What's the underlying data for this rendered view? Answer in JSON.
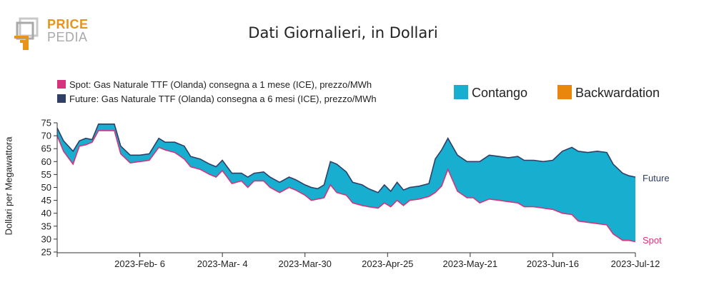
{
  "logo": {
    "word1": "PRICE",
    "word2": "PEDIA"
  },
  "chart_data": {
    "type": "area",
    "title": "Dati Giornalieri, in Dollari",
    "xlabel": "",
    "ylabel": "Dollari per Megawattora",
    "ylim": [
      25,
      75
    ],
    "yticks": [
      25,
      30,
      35,
      40,
      45,
      50,
      55,
      60,
      65,
      70,
      75
    ],
    "xticks": [
      "2023-Feb- 6",
      "2023-Mar- 4",
      "2023-Mar-30",
      "2023-Apr-25",
      "2023-May-21",
      "2023-Jun-16",
      "2023-Jul-12"
    ],
    "x_start": "2023-01-11",
    "x_end": "2023-07-12",
    "legend": [
      {
        "name": "Spot: Gas Naturale TTF (Olanda) consegna a 1 mese (ICE), prezzo/MWh",
        "color": "#d6337c"
      },
      {
        "name": "Future: Gas Naturale TTF (Olanda) consegna a 6 mesi (ICE), prezzo/MWh",
        "color": "#2f3f66"
      }
    ],
    "areas": [
      {
        "name": "Contango",
        "color": "#17aed0"
      },
      {
        "name": "Backwardation",
        "color": "#e8870c"
      }
    ],
    "end_labels": {
      "future": "Future",
      "spot": "Spot"
    },
    "series": [
      {
        "name": "Future",
        "color": "#2f3f66",
        "points": [
          [
            "2023-01-11",
            73
          ],
          [
            "2023-01-13",
            68
          ],
          [
            "2023-01-16",
            64
          ],
          [
            "2023-01-18",
            68
          ],
          [
            "2023-01-20",
            69
          ],
          [
            "2023-01-22",
            68.5
          ],
          [
            "2023-01-24",
            74.5
          ],
          [
            "2023-01-26",
            74.5
          ],
          [
            "2023-01-29",
            74.5
          ],
          [
            "2023-01-31",
            66
          ],
          [
            "2023-02-03",
            62.5
          ],
          [
            "2023-02-06",
            62.5
          ],
          [
            "2023-02-09",
            63
          ],
          [
            "2023-02-12",
            69
          ],
          [
            "2023-02-14",
            67.5
          ],
          [
            "2023-02-17",
            67.5
          ],
          [
            "2023-02-20",
            66
          ],
          [
            "2023-02-22",
            62
          ],
          [
            "2023-02-25",
            61
          ],
          [
            "2023-02-28",
            59
          ],
          [
            "2023-03-02",
            58
          ],
          [
            "2023-03-04",
            60.5
          ],
          [
            "2023-03-07",
            55.5
          ],
          [
            "2023-03-10",
            55.5
          ],
          [
            "2023-03-12",
            54
          ],
          [
            "2023-03-14",
            55.5
          ],
          [
            "2023-03-17",
            56
          ],
          [
            "2023-03-19",
            54
          ],
          [
            "2023-03-22",
            52
          ],
          [
            "2023-03-25",
            54
          ],
          [
            "2023-03-27",
            53
          ],
          [
            "2023-03-30",
            51
          ],
          [
            "2023-04-01",
            50
          ],
          [
            "2023-04-03",
            49.5
          ],
          [
            "2023-04-05",
            51
          ],
          [
            "2023-04-07",
            60
          ],
          [
            "2023-04-09",
            59
          ],
          [
            "2023-04-12",
            56
          ],
          [
            "2023-04-14",
            52
          ],
          [
            "2023-04-17",
            51
          ],
          [
            "2023-04-19",
            49.5
          ],
          [
            "2023-04-22",
            48
          ],
          [
            "2023-04-24",
            51
          ],
          [
            "2023-04-26",
            48.5
          ],
          [
            "2023-04-28",
            52
          ],
          [
            "2023-04-30",
            49
          ],
          [
            "2023-05-02",
            50
          ],
          [
            "2023-05-05",
            50.5
          ],
          [
            "2023-05-08",
            51.5
          ],
          [
            "2023-05-10",
            61
          ],
          [
            "2023-05-12",
            64.5
          ],
          [
            "2023-05-14",
            69
          ],
          [
            "2023-05-17",
            62.5
          ],
          [
            "2023-05-20",
            60
          ],
          [
            "2023-05-22",
            60
          ],
          [
            "2023-05-24",
            60
          ],
          [
            "2023-05-27",
            62.5
          ],
          [
            "2023-05-30",
            62
          ],
          [
            "2023-06-02",
            61.5
          ],
          [
            "2023-06-05",
            62
          ],
          [
            "2023-06-07",
            60.5
          ],
          [
            "2023-06-10",
            60.5
          ],
          [
            "2023-06-13",
            60
          ],
          [
            "2023-06-16",
            60.5
          ],
          [
            "2023-06-19",
            64
          ],
          [
            "2023-06-22",
            65.5
          ],
          [
            "2023-06-24",
            64
          ],
          [
            "2023-06-27",
            63.5
          ],
          [
            "2023-06-30",
            64
          ],
          [
            "2023-07-03",
            63.5
          ],
          [
            "2023-07-05",
            59
          ],
          [
            "2023-07-08",
            55.5
          ],
          [
            "2023-07-10",
            54.5
          ],
          [
            "2023-07-12",
            54
          ]
        ]
      }
    ]
  }
}
